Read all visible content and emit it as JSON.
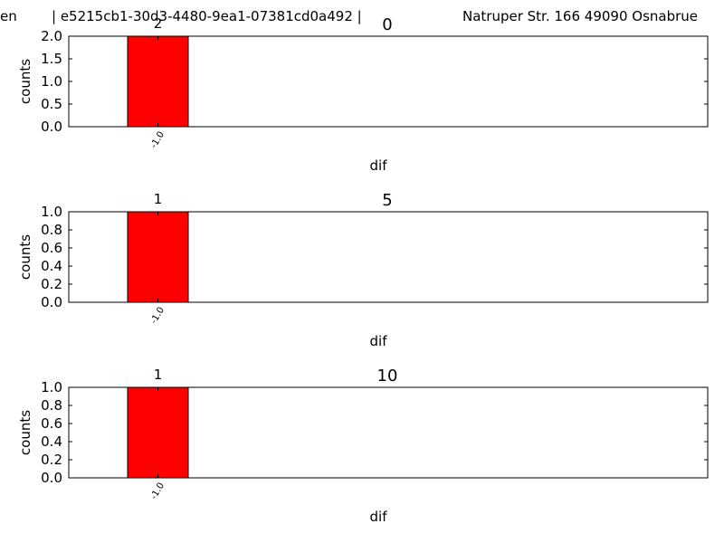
{
  "header": {
    "left": "en",
    "middle": "| e5215cb1-30d3-4480-9ea1-07381cd0a492 |",
    "right": "Natruper Str. 166 49090 Osnabrue"
  },
  "colors": {
    "bar": "#ff0000"
  },
  "chart_data": [
    {
      "type": "bar",
      "title": "0",
      "xlabel": "dif",
      "ylabel": "counts",
      "categories": [
        "-1.0"
      ],
      "values": [
        2
      ],
      "ylim": [
        0,
        2
      ],
      "yticks": [
        0.0,
        0.5,
        1.0,
        1.5,
        2.0
      ],
      "ytick_labels": [
        "0.0",
        "0.5",
        "1.0",
        "1.5",
        "2.0"
      ],
      "data_labels": [
        "2"
      ],
      "grid": false
    },
    {
      "type": "bar",
      "title": "5",
      "xlabel": "dif",
      "ylabel": "counts",
      "categories": [
        "-1.0"
      ],
      "values": [
        1
      ],
      "ylim": [
        0,
        1
      ],
      "yticks": [
        0.0,
        0.2,
        0.4,
        0.6,
        0.8,
        1.0
      ],
      "ytick_labels": [
        "0.0",
        "0.2",
        "0.4",
        "0.6",
        "0.8",
        "1.0"
      ],
      "data_labels": [
        "1"
      ],
      "grid": false
    },
    {
      "type": "bar",
      "title": "10",
      "xlabel": "dif",
      "ylabel": "counts",
      "categories": [
        "-1.0"
      ],
      "values": [
        1
      ],
      "ylim": [
        0,
        1
      ],
      "yticks": [
        0.0,
        0.2,
        0.4,
        0.6,
        0.8,
        1.0
      ],
      "ytick_labels": [
        "0.0",
        "0.2",
        "0.4",
        "0.6",
        "0.8",
        "1.0"
      ],
      "data_labels": [
        "1"
      ],
      "grid": false
    }
  ]
}
